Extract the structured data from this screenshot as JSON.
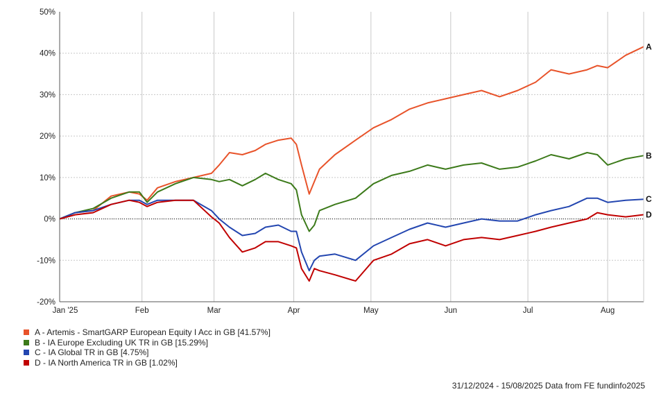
{
  "chart_data": {
    "type": "line",
    "x_ticks": [
      "Jan '25",
      "Feb",
      "Mar",
      "Apr",
      "May",
      "Jun",
      "Jul",
      "Aug"
    ],
    "y_ticks": [
      "50%",
      "40%",
      "30%",
      "20%",
      "10%",
      "0%",
      "-10%",
      "-20%"
    ],
    "ylim": [
      -20,
      50
    ],
    "grid": true,
    "legend_position": "bottom-left",
    "series": [
      {
        "key": "A",
        "name": "A - Artemis - SmartGARP European Equity I Acc in GB [41.57%]",
        "color": "#e8532a",
        "points": [
          [
            "2024-12-31",
            0
          ],
          [
            "2025-01-06",
            1.5
          ],
          [
            "2025-01-13",
            2
          ],
          [
            "2025-01-20",
            5.5
          ],
          [
            "2025-01-27",
            6.5
          ],
          [
            "2025-01-31",
            6
          ],
          [
            "2025-02-03",
            4.5
          ],
          [
            "2025-02-07",
            7.5
          ],
          [
            "2025-02-14",
            9
          ],
          [
            "2025-02-21",
            10
          ],
          [
            "2025-02-28",
            11
          ],
          [
            "2025-03-03",
            13
          ],
          [
            "2025-03-07",
            16
          ],
          [
            "2025-03-12",
            15.5
          ],
          [
            "2025-03-17",
            16.5
          ],
          [
            "2025-03-21",
            18
          ],
          [
            "2025-03-26",
            19
          ],
          [
            "2025-03-31",
            19.5
          ],
          [
            "2025-04-02",
            18
          ],
          [
            "2025-04-04",
            13
          ],
          [
            "2025-04-07",
            6
          ],
          [
            "2025-04-09",
            9
          ],
          [
            "2025-04-11",
            12
          ],
          [
            "2025-04-17",
            15.5
          ],
          [
            "2025-04-25",
            19
          ],
          [
            "2025-05-02",
            22
          ],
          [
            "2025-05-09",
            24
          ],
          [
            "2025-05-16",
            26.5
          ],
          [
            "2025-05-23",
            28
          ],
          [
            "2025-05-30",
            29
          ],
          [
            "2025-06-06",
            30
          ],
          [
            "2025-06-13",
            31
          ],
          [
            "2025-06-20",
            29.5
          ],
          [
            "2025-06-27",
            31
          ],
          [
            "2025-07-04",
            33
          ],
          [
            "2025-07-10",
            36
          ],
          [
            "2025-07-17",
            35
          ],
          [
            "2025-07-24",
            36
          ],
          [
            "2025-07-28",
            37
          ],
          [
            "2025-08-01",
            36.5
          ],
          [
            "2025-08-08",
            39.5
          ],
          [
            "2025-08-15",
            41.57
          ]
        ]
      },
      {
        "key": "B",
        "name": "B - IA Europe Excluding UK TR in GB [15.29%]",
        "color": "#3c7a1a",
        "points": [
          [
            "2024-12-31",
            0
          ],
          [
            "2025-01-06",
            1.5
          ],
          [
            "2025-01-13",
            2.5
          ],
          [
            "2025-01-20",
            5
          ],
          [
            "2025-01-27",
            6.5
          ],
          [
            "2025-01-31",
            6.5
          ],
          [
            "2025-02-03",
            4
          ],
          [
            "2025-02-07",
            6.5
          ],
          [
            "2025-02-14",
            8.5
          ],
          [
            "2025-02-21",
            10
          ],
          [
            "2025-02-28",
            9.5
          ],
          [
            "2025-03-03",
            9
          ],
          [
            "2025-03-07",
            9.5
          ],
          [
            "2025-03-12",
            8
          ],
          [
            "2025-03-17",
            9.5
          ],
          [
            "2025-03-21",
            11
          ],
          [
            "2025-03-26",
            9.5
          ],
          [
            "2025-03-31",
            8.5
          ],
          [
            "2025-04-02",
            7
          ],
          [
            "2025-04-04",
            1
          ],
          [
            "2025-04-07",
            -3
          ],
          [
            "2025-04-09",
            -1.5
          ],
          [
            "2025-04-11",
            2
          ],
          [
            "2025-04-17",
            3.5
          ],
          [
            "2025-04-25",
            5
          ],
          [
            "2025-05-02",
            8.5
          ],
          [
            "2025-05-09",
            10.5
          ],
          [
            "2025-05-16",
            11.5
          ],
          [
            "2025-05-23",
            13
          ],
          [
            "2025-05-30",
            12
          ],
          [
            "2025-06-06",
            13
          ],
          [
            "2025-06-13",
            13.5
          ],
          [
            "2025-06-20",
            12
          ],
          [
            "2025-06-27",
            12.5
          ],
          [
            "2025-07-04",
            14
          ],
          [
            "2025-07-10",
            15.5
          ],
          [
            "2025-07-17",
            14.5
          ],
          [
            "2025-07-24",
            16
          ],
          [
            "2025-07-28",
            15.5
          ],
          [
            "2025-08-01",
            13
          ],
          [
            "2025-08-08",
            14.5
          ],
          [
            "2025-08-15",
            15.29
          ]
        ]
      },
      {
        "key": "C",
        "name": "C - IA Global TR in GB [4.75%]",
        "color": "#2346b0",
        "points": [
          [
            "2024-12-31",
            0
          ],
          [
            "2025-01-06",
            1.5
          ],
          [
            "2025-01-13",
            2
          ],
          [
            "2025-01-20",
            3.5
          ],
          [
            "2025-01-27",
            4.5
          ],
          [
            "2025-01-31",
            4.5
          ],
          [
            "2025-02-03",
            3.5
          ],
          [
            "2025-02-07",
            4.5
          ],
          [
            "2025-02-14",
            4.5
          ],
          [
            "2025-02-21",
            4.5
          ],
          [
            "2025-02-28",
            2
          ],
          [
            "2025-03-03",
            0
          ],
          [
            "2025-03-07",
            -2
          ],
          [
            "2025-03-12",
            -4
          ],
          [
            "2025-03-17",
            -3.5
          ],
          [
            "2025-03-21",
            -2
          ],
          [
            "2025-03-26",
            -1.5
          ],
          [
            "2025-03-31",
            -3
          ],
          [
            "2025-04-02",
            -3
          ],
          [
            "2025-04-04",
            -8
          ],
          [
            "2025-04-07",
            -12.5
          ],
          [
            "2025-04-09",
            -10
          ],
          [
            "2025-04-11",
            -9
          ],
          [
            "2025-04-17",
            -8.5
          ],
          [
            "2025-04-25",
            -10
          ],
          [
            "2025-05-02",
            -6.5
          ],
          [
            "2025-05-09",
            -4.5
          ],
          [
            "2025-05-16",
            -2.5
          ],
          [
            "2025-05-23",
            -1
          ],
          [
            "2025-05-30",
            -2
          ],
          [
            "2025-06-06",
            -1
          ],
          [
            "2025-06-13",
            0
          ],
          [
            "2025-06-20",
            -0.5
          ],
          [
            "2025-06-27",
            -0.5
          ],
          [
            "2025-07-04",
            1
          ],
          [
            "2025-07-10",
            2
          ],
          [
            "2025-07-17",
            3
          ],
          [
            "2025-07-24",
            5
          ],
          [
            "2025-07-28",
            5
          ],
          [
            "2025-08-01",
            4
          ],
          [
            "2025-08-08",
            4.5
          ],
          [
            "2025-08-15",
            4.75
          ]
        ]
      },
      {
        "key": "D",
        "name": "D - IA North America TR in GB [1.02%]",
        "color": "#c00000",
        "points": [
          [
            "2024-12-31",
            0
          ],
          [
            "2025-01-06",
            1
          ],
          [
            "2025-01-13",
            1.5
          ],
          [
            "2025-01-20",
            3.5
          ],
          [
            "2025-01-27",
            4.5
          ],
          [
            "2025-01-31",
            4
          ],
          [
            "2025-02-03",
            3
          ],
          [
            "2025-02-07",
            4
          ],
          [
            "2025-02-14",
            4.5
          ],
          [
            "2025-02-21",
            4.5
          ],
          [
            "2025-02-28",
            0.5
          ],
          [
            "2025-03-03",
            -1
          ],
          [
            "2025-03-07",
            -4.5
          ],
          [
            "2025-03-12",
            -8
          ],
          [
            "2025-03-17",
            -7
          ],
          [
            "2025-03-21",
            -5.5
          ],
          [
            "2025-03-26",
            -5.5
          ],
          [
            "2025-03-31",
            -6.5
          ],
          [
            "2025-04-02",
            -7
          ],
          [
            "2025-04-04",
            -12
          ],
          [
            "2025-04-07",
            -15
          ],
          [
            "2025-04-09",
            -12
          ],
          [
            "2025-04-11",
            -12.5
          ],
          [
            "2025-04-17",
            -13.5
          ],
          [
            "2025-04-25",
            -15
          ],
          [
            "2025-05-02",
            -10
          ],
          [
            "2025-05-09",
            -8.5
          ],
          [
            "2025-05-16",
            -6
          ],
          [
            "2025-05-23",
            -5
          ],
          [
            "2025-05-30",
            -6.5
          ],
          [
            "2025-06-06",
            -5
          ],
          [
            "2025-06-13",
            -4.5
          ],
          [
            "2025-06-20",
            -5
          ],
          [
            "2025-06-27",
            -4
          ],
          [
            "2025-07-04",
            -3
          ],
          [
            "2025-07-10",
            -2
          ],
          [
            "2025-07-17",
            -1
          ],
          [
            "2025-07-24",
            0
          ],
          [
            "2025-07-28",
            1.5
          ],
          [
            "2025-08-01",
            1
          ],
          [
            "2025-08-08",
            0.5
          ],
          [
            "2025-08-15",
            1.02
          ]
        ]
      }
    ]
  },
  "footer_text": "31/12/2024 - 15/08/2025 Data from FE fundinfo2025"
}
